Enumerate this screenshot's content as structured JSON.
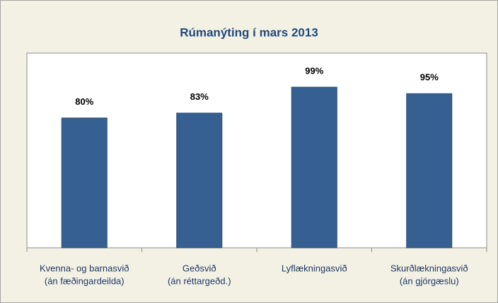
{
  "chart_data": {
    "type": "bar",
    "title": "Rúmanýting í mars 2013",
    "categories": [
      [
        "Kvenna- og barnasvið",
        "(án fæðingardeilda)"
      ],
      [
        "Geðsvið",
        "(án réttargeðd.)"
      ],
      [
        "Lyflækningasvið"
      ],
      [
        "Skurðlækningasvið",
        "(án gjörgæslu)"
      ]
    ],
    "values": [
      80,
      83,
      99,
      95
    ],
    "value_labels": [
      "80%",
      "83%",
      "99%",
      "95%"
    ],
    "color": "#366092",
    "ylim": [
      0,
      120
    ]
  }
}
